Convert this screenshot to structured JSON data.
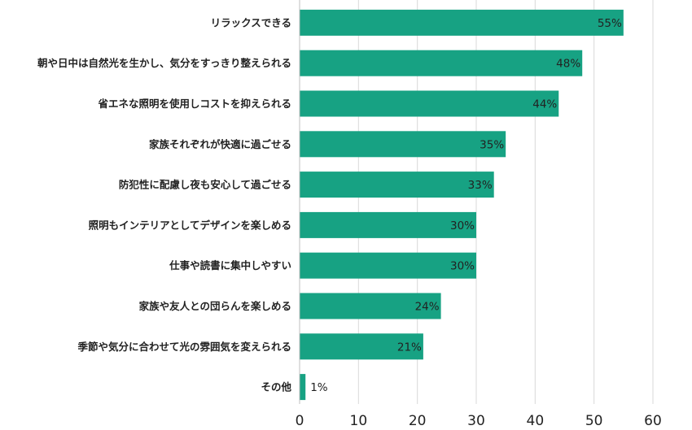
{
  "chart_data": {
    "type": "bar",
    "orientation": "horizontal",
    "categories": [
      "リラックスできる",
      "朝や日中は自然光を生かし、気分をすっきり整えられる",
      "省エネな照明を使用しコストを抑えられる",
      "家族それぞれが快適に過ごせる",
      "防犯性に配慮し夜も安心して過ごせる",
      "照明もインテリアとしてデザインを楽しめる",
      "仕事や読書に集中しやすい",
      "家族や友人との団らんを楽しめる",
      "季節や気分に合わせて光の雰囲気を変えられる",
      "その他"
    ],
    "values": [
      55,
      48,
      44,
      35,
      33,
      30,
      30,
      24,
      21,
      1
    ],
    "value_labels": [
      "55%",
      "48%",
      "44%",
      "35%",
      "33%",
      "30%",
      "30%",
      "24%",
      "21%",
      "1%"
    ],
    "xlim": [
      0,
      60
    ],
    "xticks": [
      "0",
      "10",
      "20",
      "30",
      "40",
      "50",
      "60"
    ],
    "grid": true,
    "bar_color": "#17a283",
    "grid_color": "#d9d9d9",
    "title": "",
    "xlabel": "",
    "ylabel": ""
  }
}
